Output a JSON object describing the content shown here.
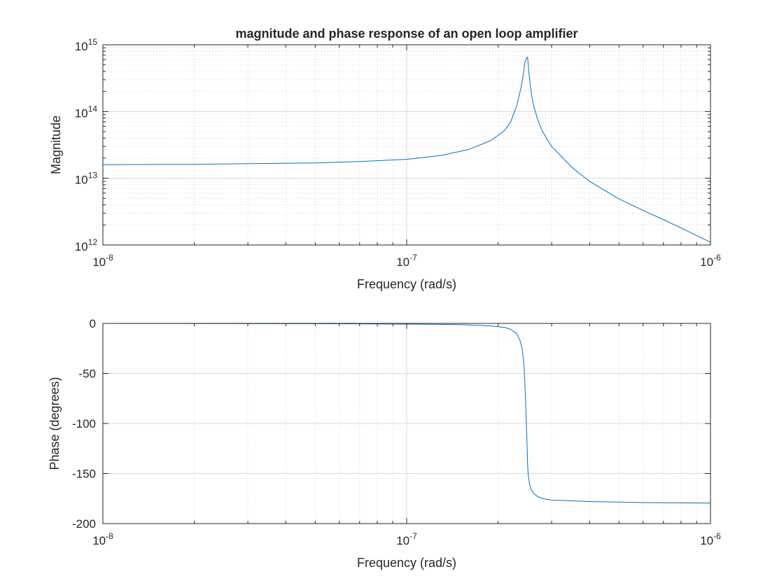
{
  "colors": {
    "line": "#0072BD",
    "axis": "#262626",
    "grid_major": "#d9d9d9",
    "grid_minor": "#d4d4d4",
    "background": "#ffffff"
  },
  "chart_data": [
    {
      "type": "line",
      "title": "magnitude and phase response of an open loop amplifier",
      "xlabel": "Frequency (rad/s)",
      "ylabel": "Magnitude",
      "xscale": "log",
      "yscale": "log",
      "xlim": [
        1e-08,
        1e-06
      ],
      "ylim": [
        1000000000000.0,
        1000000000000000.0
      ],
      "grid": "major and minor",
      "x_tick_labels": [
        {
          "base": "10",
          "exp": "-8"
        },
        {
          "base": "10",
          "exp": "-7"
        },
        {
          "base": "10",
          "exp": "-6"
        }
      ],
      "y_tick_labels": [
        {
          "base": "10",
          "exp": "12"
        },
        {
          "base": "10",
          "exp": "13"
        },
        {
          "base": "10",
          "exp": "14"
        },
        {
          "base": "10",
          "exp": "15"
        }
      ],
      "series": [
        {
          "x": [
            1e-08,
            2e-08,
            5e-08,
            7e-08,
            1e-07,
            1.3e-07,
            1.6e-07,
            1.9e-07,
            2.1e-07,
            2.2e-07,
            2.3e-07,
            2.38e-07,
            2.42e-07,
            2.45e-07,
            2.48e-07,
            2.5e-07,
            2.52e-07,
            2.55e-07,
            2.58e-07,
            2.62e-07,
            2.7e-07,
            2.8e-07,
            3e-07,
            3.5e-07,
            4e-07,
            5e-07,
            6e-07,
            7e-07,
            8e-07,
            1e-06
          ],
          "y": [
            16000000000000.0,
            16200000000000.0,
            17000000000000.0,
            17800000000000.0,
            19200000000000.0,
            22000000000000.0,
            27000000000000.0,
            37000000000000.0,
            52000000000000.0,
            70000000000000.0,
            120000000000000.0,
            230000000000000.0,
            360000000000000.0,
            550000000000000.0,
            630000000000000.0,
            650000000000000.0,
            420000000000000.0,
            250000000000000.0,
            170000000000000.0,
            120000000000000.0,
            75000000000000.0,
            50000000000000.0,
            30000000000000.0,
            14500000000000.0,
            9000000000000.0,
            4900000000000.0,
            3300000000000.0,
            2400000000000.0,
            1800000000000.0,
            1100000000000.0
          ]
        }
      ]
    },
    {
      "type": "line",
      "title": "",
      "xlabel": "Frequency (rad/s)",
      "ylabel": "Phase (degrees)",
      "xscale": "log",
      "yscale": "linear",
      "xlim": [
        1e-08,
        1e-06
      ],
      "ylim": [
        -200,
        0
      ],
      "grid": "major and minor x, major y",
      "x_tick_labels": [
        {
          "base": "10",
          "exp": "-8"
        },
        {
          "base": "10",
          "exp": "-7"
        },
        {
          "base": "10",
          "exp": "-6"
        }
      ],
      "y_ticks": [
        0,
        -50,
        -100,
        -150,
        -200
      ],
      "y_tick_labels": [
        "0",
        "-50",
        "-100",
        "-150",
        "-200"
      ],
      "series": [
        {
          "x": [
            1e-08,
            5e-08,
            1e-07,
            1.5e-07,
            1.9e-07,
            2.1e-07,
            2.2e-07,
            2.3e-07,
            2.36e-07,
            2.4e-07,
            2.43e-07,
            2.45e-07,
            2.47e-07,
            2.49e-07,
            2.5e-07,
            2.51e-07,
            2.53e-07,
            2.55e-07,
            2.58e-07,
            2.62e-07,
            2.7e-07,
            2.8e-07,
            3e-07,
            4e-07,
            6e-07,
            1e-06
          ],
          "y": [
            0,
            -0.3,
            -0.7,
            -1.2,
            -2.5,
            -4,
            -6,
            -10,
            -17,
            -25,
            -40,
            -60,
            -90,
            -120,
            -140,
            -150,
            -158,
            -163,
            -167,
            -170,
            -173,
            -175,
            -176.5,
            -178,
            -179,
            -179.5
          ]
        }
      ]
    }
  ]
}
